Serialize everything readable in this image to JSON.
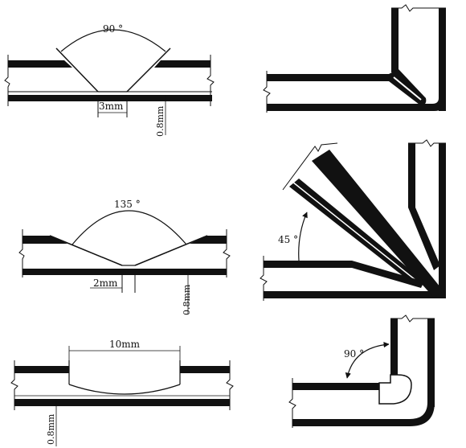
{
  "diagram": {
    "ink_color": "#111111",
    "background": "#ffffff",
    "panels": [
      {
        "id": "v-groove",
        "labels": {
          "angle": "90 °",
          "gap": "3mm",
          "depth": "0.8mm"
        }
      },
      {
        "id": "corner-right-angle",
        "labels": {}
      },
      {
        "id": "shallow-groove",
        "labels": {
          "angle": "135 °",
          "gap": "2mm",
          "depth": "0.8mm"
        }
      },
      {
        "id": "corner-45",
        "labels": {
          "angle": "45 °"
        }
      },
      {
        "id": "flat-groove",
        "labels": {
          "width": "10mm",
          "depth": "0.8mm"
        }
      },
      {
        "id": "corner-rounded-90",
        "labels": {
          "angle": "90 °"
        }
      }
    ]
  }
}
